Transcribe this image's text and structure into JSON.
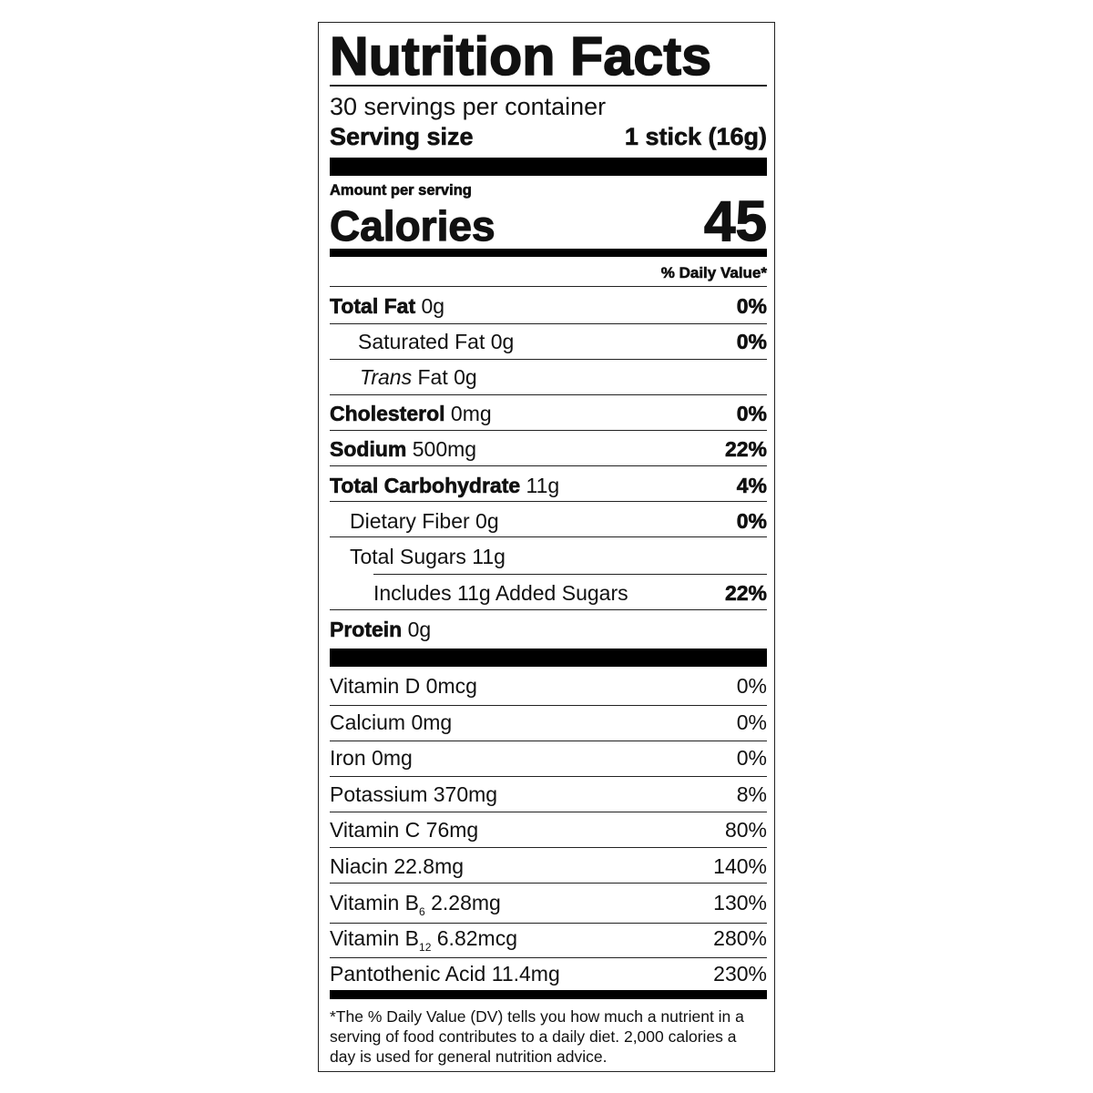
{
  "title": "Nutrition Facts",
  "servings_per_container": "30 servings per container",
  "serving_size_label": "Serving size",
  "serving_size_value": "1 stick (16g)",
  "amount_per_serving": "Amount per serving",
  "calories_label": "Calories",
  "calories_value": "45",
  "daily_value_header": "% Daily Value*",
  "nutrients": [
    {
      "name": "Total Fat",
      "amount": "0g",
      "dv": "0%"
    },
    {
      "name": "Saturated Fat",
      "amount": "0g",
      "dv": "0%"
    },
    {
      "name": "Trans",
      "name_suffix": "Fat",
      "amount": "0g",
      "dv": ""
    },
    {
      "name": "Cholesterol",
      "amount": "0mg",
      "dv": "0%"
    },
    {
      "name": "Sodium",
      "amount": "500mg",
      "dv": "22%"
    },
    {
      "name": "Total Carbohydrate",
      "amount": "11g",
      "dv": "4%"
    },
    {
      "name": "Dietary Fiber",
      "amount": "0g",
      "dv": "0%"
    },
    {
      "name": "Total Sugars",
      "amount": "11g",
      "dv": ""
    },
    {
      "name": "Includes 11g Added Sugars",
      "amount": "",
      "dv": "22%"
    },
    {
      "name": "Protein",
      "amount": "0g",
      "dv": ""
    }
  ],
  "vitamins": [
    {
      "name": "Vitamin D",
      "sub": "",
      "amount": "0mcg",
      "dv": "0%"
    },
    {
      "name": "Calcium",
      "sub": "",
      "amount": "0mg",
      "dv": "0%"
    },
    {
      "name": "Iron",
      "sub": "",
      "amount": "0mg",
      "dv": "0%"
    },
    {
      "name": "Potassium",
      "sub": "",
      "amount": "370mg",
      "dv": "8%"
    },
    {
      "name": "Vitamin C",
      "sub": "",
      "amount": "76mg",
      "dv": "80%"
    },
    {
      "name": "Niacin",
      "sub": "",
      "amount": "22.8mg",
      "dv": "140%"
    },
    {
      "name": "Vitamin B",
      "sub": "6",
      "amount": "2.28mg",
      "dv": "130%"
    },
    {
      "name": "Vitamin B",
      "sub": "12",
      "amount": "6.82mcg",
      "dv": "280%"
    },
    {
      "name": "Pantothenic Acid",
      "sub": "",
      "amount": "11.4mg",
      "dv": "230%"
    }
  ],
  "footnote": "*The % Daily Value (DV) tells you how much a nutrient in a serving of food contributes to a daily diet. 2,000 calories a day is used for general nutrition advice."
}
